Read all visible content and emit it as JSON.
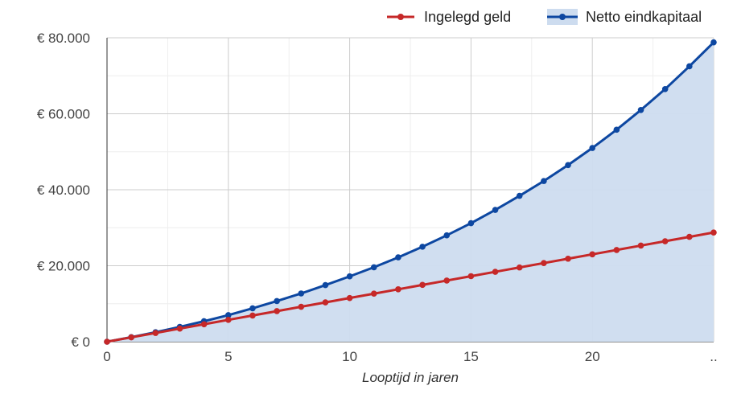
{
  "chart_data": {
    "type": "line",
    "xlabel": "Looptijd in jaren",
    "ylabel": "",
    "x": [
      0,
      1,
      2,
      3,
      4,
      5,
      6,
      7,
      8,
      9,
      10,
      11,
      12,
      13,
      14,
      15,
      16,
      17,
      18,
      19,
      20,
      21,
      22,
      23,
      24,
      25
    ],
    "xlim": [
      0,
      25
    ],
    "ylim": [
      0,
      80000
    ],
    "x_ticks": [
      "0",
      "5",
      "10",
      "15",
      "20",
      ".."
    ],
    "x_tick_values": [
      0,
      5,
      10,
      15,
      20,
      25
    ],
    "y_ticks": [
      "€ 0",
      "€ 20.000",
      "€ 40.000",
      "€ 60.000",
      "€ 80.000"
    ],
    "y_tick_values": [
      0,
      20000,
      40000,
      60000,
      80000
    ],
    "grid": true,
    "legend_position": "top-right",
    "series": [
      {
        "name": "Ingelegd geld",
        "color": "#c62828",
        "area": false,
        "values": [
          0,
          1150,
          2300,
          3450,
          4600,
          5750,
          6900,
          8050,
          9200,
          10350,
          11500,
          12650,
          13800,
          14950,
          16100,
          17250,
          18400,
          19550,
          20700,
          21850,
          23000,
          24150,
          25300,
          26450,
          27600,
          28750
        ]
      },
      {
        "name": "Netto eindkapitaal",
        "color": "#0d47a1",
        "fill": "#cddcef",
        "area": true,
        "values": [
          0,
          1200,
          2500,
          3900,
          5400,
          7000,
          8800,
          10700,
          12700,
          14900,
          17200,
          19600,
          22200,
          25000,
          28000,
          31200,
          34700,
          38400,
          42300,
          46500,
          51000,
          55800,
          61000,
          66500,
          72500,
          78800
        ]
      }
    ]
  }
}
